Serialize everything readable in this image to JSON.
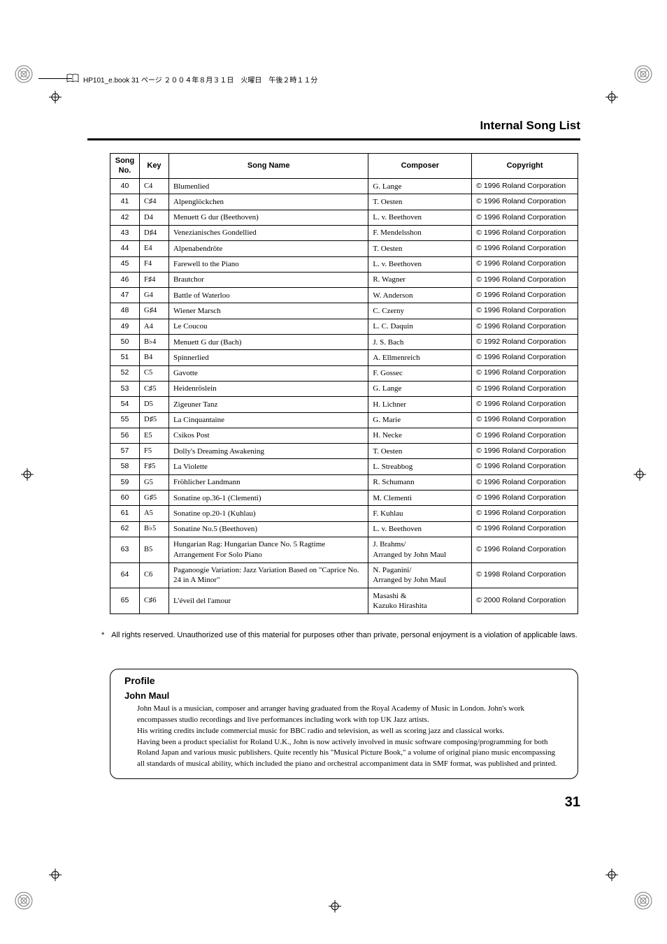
{
  "header": {
    "filepath_text": "HP101_e.book 31 ページ ２００４年８月３１日　火曜日　午後２時１１分"
  },
  "section_title": "Internal Song List",
  "columns": {
    "no": "Song No.",
    "key": "Key",
    "name": "Song Name",
    "composer": "Composer",
    "copyright": "Copyright"
  },
  "rows": [
    {
      "no": "40",
      "key": "C4",
      "sharpflat": "",
      "name": "Blumenlied",
      "composer": "G. Lange",
      "copyright": "© 1996 Roland Corporation"
    },
    {
      "no": "41",
      "key": "C",
      "sharpflat": "♯",
      "oct": "4",
      "name": "Alpenglöckchen",
      "composer": "T. Oesten",
      "copyright": "© 1996 Roland Corporation"
    },
    {
      "no": "42",
      "key": "D4",
      "sharpflat": "",
      "name": "Menuett G dur (Beethoven)",
      "composer": "L. v. Beethoven",
      "copyright": "© 1996 Roland Corporation"
    },
    {
      "no": "43",
      "key": "D",
      "sharpflat": "♯",
      "oct": "4",
      "name": "Venezianisches Gondellied",
      "composer": "F. Mendelsshon",
      "copyright": "© 1996 Roland Corporation"
    },
    {
      "no": "44",
      "key": "E4",
      "sharpflat": "",
      "name": "Alpenabendröte",
      "composer": "T. Oesten",
      "copyright": "© 1996 Roland Corporation"
    },
    {
      "no": "45",
      "key": "F4",
      "sharpflat": "",
      "name": "Farewell to the Piano",
      "composer": "L. v. Beethoven",
      "copyright": "© 1996 Roland Corporation"
    },
    {
      "no": "46",
      "key": "F",
      "sharpflat": "♯",
      "oct": "4",
      "name": "Brautchor",
      "composer": "R. Wagner",
      "copyright": "© 1996 Roland Corporation"
    },
    {
      "no": "47",
      "key": "G4",
      "sharpflat": "",
      "name": "Battle of Waterloo",
      "composer": "W. Anderson",
      "copyright": "© 1996 Roland Corporation"
    },
    {
      "no": "48",
      "key": "G",
      "sharpflat": "♯",
      "oct": "4",
      "name": "Wiener Marsch",
      "composer": "C. Czerny",
      "copyright": "© 1996 Roland Corporation"
    },
    {
      "no": "49",
      "key": "A4",
      "sharpflat": "",
      "name": "Le Coucou",
      "composer": "L. C. Daquin",
      "copyright": "© 1996 Roland Corporation"
    },
    {
      "no": "50",
      "key": "B",
      "sharpflat": "♭",
      "oct": "4",
      "name": "Menuett G dur (Bach)",
      "composer": "J. S. Bach",
      "copyright": "© 1992 Roland Corporation"
    },
    {
      "no": "51",
      "key": "B4",
      "sharpflat": "",
      "name": "Spinnerlied",
      "composer": "A. Ellmenreich",
      "copyright": "© 1996 Roland Corporation"
    },
    {
      "no": "52",
      "key": "C5",
      "sharpflat": "",
      "name": "Gavotte",
      "composer": "F. Gossec",
      "copyright": "© 1996 Roland Corporation"
    },
    {
      "no": "53",
      "key": "C",
      "sharpflat": "♯",
      "oct": "5",
      "name": "Heidenröslein",
      "composer": "G. Lange",
      "copyright": "© 1996 Roland Corporation"
    },
    {
      "no": "54",
      "key": "D5",
      "sharpflat": "",
      "name": "Zigeuner Tanz",
      "composer": "H. Lichner",
      "copyright": "© 1996 Roland Corporation"
    },
    {
      "no": "55",
      "key": "D",
      "sharpflat": "♯",
      "oct": "5",
      "name": "La Cinquantaine",
      "composer": "G. Marie",
      "copyright": "© 1996 Roland Corporation"
    },
    {
      "no": "56",
      "key": "E5",
      "sharpflat": "",
      "name": "Csikos Post",
      "composer": "H. Necke",
      "copyright": "© 1996 Roland Corporation"
    },
    {
      "no": "57",
      "key": "F5",
      "sharpflat": "",
      "name": "Dolly's Dreaming Awakening",
      "composer": "T. Oesten",
      "copyright": "© 1996 Roland Corporation"
    },
    {
      "no": "58",
      "key": "F",
      "sharpflat": "♯",
      "oct": "5",
      "name": "La Violette",
      "composer": "L. Streabbog",
      "copyright": "© 1996 Roland Corporation"
    },
    {
      "no": "59",
      "key": "G5",
      "sharpflat": "",
      "name": "Fröhlicher Landmann",
      "composer": "R. Schumann",
      "copyright": "© 1996 Roland Corporation"
    },
    {
      "no": "60",
      "key": "G",
      "sharpflat": "♯",
      "oct": "5",
      "name": "Sonatine op.36-1 (Clementi)",
      "composer": "M. Clementi",
      "copyright": "© 1996 Roland Corporation"
    },
    {
      "no": "61",
      "key": "A5",
      "sharpflat": "",
      "name": "Sonatine op.20-1 (Kuhlau)",
      "composer": "F. Kuhlau",
      "copyright": "© 1996 Roland Corporation"
    },
    {
      "no": "62",
      "key": "B",
      "sharpflat": "♭",
      "oct": "5",
      "name": "Sonatine No.5 (Beethoven)",
      "composer": "L. v. Beethoven",
      "copyright": "© 1996 Roland Corporation"
    },
    {
      "no": "63",
      "key": "B5",
      "sharpflat": "",
      "name": "Hungarian Rag: Hungarian Dance No. 5 Ragtime Arrangement For Solo Piano",
      "composer": "J. Brahms/\nArranged by John Maul",
      "copyright": "© 1996 Roland Corporation"
    },
    {
      "no": "64",
      "key": "C6",
      "sharpflat": "",
      "name": "Paganoogie Variation: Jazz Variation Based on \"Caprice No. 24 in A Minor\"",
      "composer": "N. Paganini/\nArranged by John Maul",
      "copyright": "© 1998 Roland Corporation"
    },
    {
      "no": "65",
      "key": "C",
      "sharpflat": "♯",
      "oct": "6",
      "name": "L'éveil del l'amour",
      "composer": "Masashi &\nKazuko Hirashita",
      "copyright": "© 2000 Roland Corporation"
    }
  ],
  "footnote": "All rights reserved. Unauthorized use of this material for purposes other than private, personal enjoyment is a violation of applicable laws.",
  "profile": {
    "title": "Profile",
    "name": "John Maul",
    "body": "John Maul is a musician, composer and arranger having graduated from the Royal Academy of Music in London. John's work encompasses studio recordings and live performances including work with top UK Jazz artists.\nHis writing credits include commercial music for BBC radio and television, as well as scoring jazz and classical works.\nHaving been a product specialist for Roland U.K., John is now actively involved in music software composing/programming for both Roland Japan and various music publishers. Quite recently his \"Musical Picture Book,\" a volume of original piano music encompassing all standards of musical ability, which included the piano and orchestral accompaniment data in SMF format, was published and printed."
  },
  "page_number": "31"
}
